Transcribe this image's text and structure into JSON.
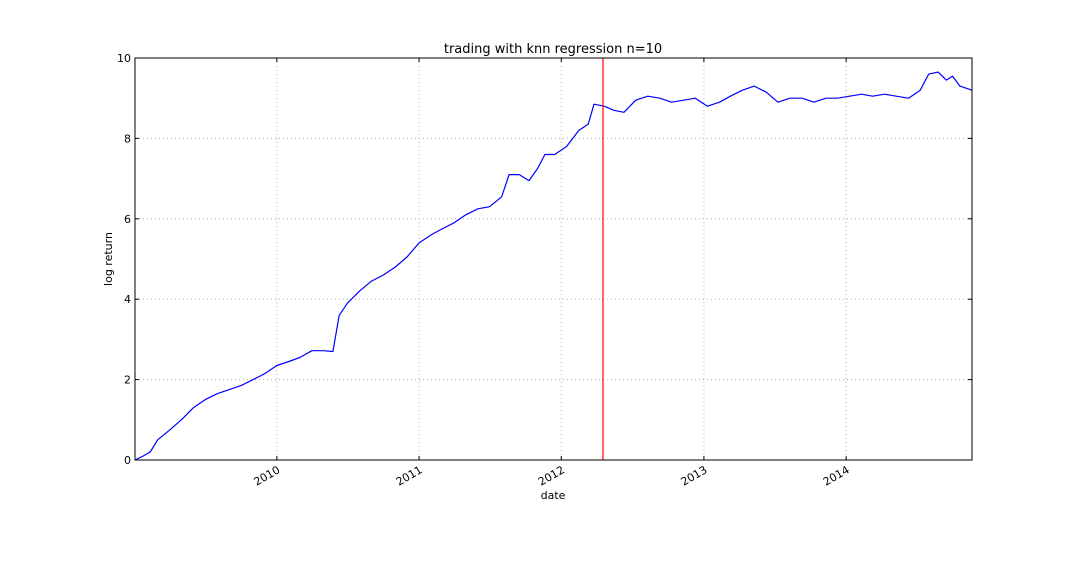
{
  "chart_data": {
    "type": "line",
    "title": "trading with knn regression n=10",
    "xlabel": "date",
    "ylabel": "log return",
    "xlim": [
      "2009-01-02",
      "2014-11-20"
    ],
    "ylim": [
      0,
      10
    ],
    "yticks": [
      0,
      2,
      4,
      6,
      8,
      10
    ],
    "xticks": [
      {
        "date": "2010-01-01",
        "label": "2010"
      },
      {
        "date": "2011-01-01",
        "label": "2011"
      },
      {
        "date": "2012-01-01",
        "label": "2012"
      },
      {
        "date": "2013-01-01",
        "label": "2013"
      },
      {
        "date": "2014-01-01",
        "label": "2014"
      }
    ],
    "grid": true,
    "series": [
      {
        "color": "#0000ff",
        "points": [
          [
            "2009-01-02",
            0.0
          ],
          [
            "2009-01-23",
            0.1
          ],
          [
            "2009-02-10",
            0.2
          ],
          [
            "2009-03-01",
            0.5
          ],
          [
            "2009-04-01",
            0.75
          ],
          [
            "2009-05-01",
            1.0
          ],
          [
            "2009-06-01",
            1.3
          ],
          [
            "2009-07-01",
            1.5
          ],
          [
            "2009-08-01",
            1.65
          ],
          [
            "2009-09-01",
            1.75
          ],
          [
            "2009-10-01",
            1.85
          ],
          [
            "2009-11-01",
            2.0
          ],
          [
            "2009-12-01",
            2.15
          ],
          [
            "2010-01-01",
            2.35
          ],
          [
            "2010-02-01",
            2.45
          ],
          [
            "2010-03-01",
            2.55
          ],
          [
            "2010-04-01",
            2.72
          ],
          [
            "2010-05-01",
            2.72
          ],
          [
            "2010-05-25",
            2.7
          ],
          [
            "2010-06-10",
            3.6
          ],
          [
            "2010-07-01",
            3.9
          ],
          [
            "2010-08-01",
            4.2
          ],
          [
            "2010-09-01",
            4.45
          ],
          [
            "2010-10-01",
            4.6
          ],
          [
            "2010-11-01",
            4.8
          ],
          [
            "2010-12-01",
            5.05
          ],
          [
            "2011-01-01",
            5.4
          ],
          [
            "2011-02-01",
            5.6
          ],
          [
            "2011-03-01",
            5.75
          ],
          [
            "2011-04-01",
            5.9
          ],
          [
            "2011-05-01",
            6.1
          ],
          [
            "2011-06-01",
            6.25
          ],
          [
            "2011-07-01",
            6.3
          ],
          [
            "2011-08-01",
            6.55
          ],
          [
            "2011-08-20",
            7.1
          ],
          [
            "2011-09-15",
            7.1
          ],
          [
            "2011-10-10",
            6.95
          ],
          [
            "2011-11-01",
            7.25
          ],
          [
            "2011-11-20",
            7.6
          ],
          [
            "2011-12-15",
            7.6
          ],
          [
            "2012-01-15",
            7.8
          ],
          [
            "2012-02-15",
            8.2
          ],
          [
            "2012-03-10",
            8.35
          ],
          [
            "2012-03-25",
            8.85
          ],
          [
            "2012-04-20",
            8.8
          ],
          [
            "2012-05-15",
            8.7
          ],
          [
            "2012-06-10",
            8.65
          ],
          [
            "2012-07-10",
            8.95
          ],
          [
            "2012-08-10",
            9.05
          ],
          [
            "2012-09-10",
            9.0
          ],
          [
            "2012-10-10",
            8.9
          ],
          [
            "2012-11-10",
            8.95
          ],
          [
            "2012-12-10",
            9.0
          ],
          [
            "2013-01-10",
            8.8
          ],
          [
            "2013-02-10",
            8.9
          ],
          [
            "2013-03-10",
            9.05
          ],
          [
            "2013-04-10",
            9.2
          ],
          [
            "2013-05-10",
            9.3
          ],
          [
            "2013-06-10",
            9.15
          ],
          [
            "2013-07-10",
            8.9
          ],
          [
            "2013-08-10",
            9.0
          ],
          [
            "2013-09-10",
            9.0
          ],
          [
            "2013-10-10",
            8.9
          ],
          [
            "2013-11-10",
            9.0
          ],
          [
            "2013-12-10",
            9.0
          ],
          [
            "2014-01-10",
            9.05
          ],
          [
            "2014-02-10",
            9.1
          ],
          [
            "2014-03-10",
            9.05
          ],
          [
            "2014-04-10",
            9.1
          ],
          [
            "2014-05-10",
            9.05
          ],
          [
            "2014-06-10",
            9.0
          ],
          [
            "2014-07-10",
            9.2
          ],
          [
            "2014-08-01",
            9.6
          ],
          [
            "2014-08-25",
            9.65
          ],
          [
            "2014-09-15",
            9.45
          ],
          [
            "2014-10-01",
            9.55
          ],
          [
            "2014-10-20",
            9.3
          ],
          [
            "2014-11-20",
            9.2
          ]
        ]
      }
    ],
    "vline": {
      "date": "2012-04-17",
      "color": "#ff0000"
    }
  }
}
